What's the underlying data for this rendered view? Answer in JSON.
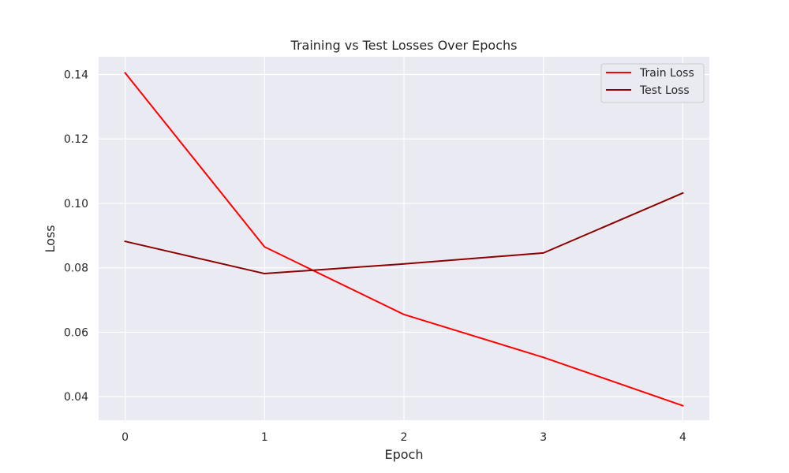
{
  "chart_data": {
    "type": "line",
    "title": "Training vs Test Losses Over Epochs",
    "xlabel": "Epoch",
    "ylabel": "Loss",
    "x": [
      0,
      1,
      2,
      3,
      4
    ],
    "xticks": [
      "0",
      "1",
      "2",
      "3",
      "4"
    ],
    "yticks": [
      "0.04",
      "0.06",
      "0.08",
      "0.10",
      "0.12",
      "0.14"
    ],
    "ytick_values": [
      0.04,
      0.06,
      0.08,
      0.1,
      0.12,
      0.14
    ],
    "xlim": [
      -0.19,
      4.19
    ],
    "ylim": [
      0.0327,
      0.1455
    ],
    "grid": true,
    "legend_position": "top-right",
    "series": [
      {
        "name": "Train Loss",
        "color": "#ff0000",
        "values": [
          0.1405,
          0.0865,
          0.0655,
          0.0522,
          0.0372
        ]
      },
      {
        "name": "Test Loss",
        "color": "#8b0000",
        "values": [
          0.0882,
          0.0782,
          0.0812,
          0.0846,
          0.1032
        ]
      }
    ],
    "colors": {
      "plot_background": "#eaeaf2",
      "grid": "#ffffff",
      "text": "#262626"
    }
  }
}
